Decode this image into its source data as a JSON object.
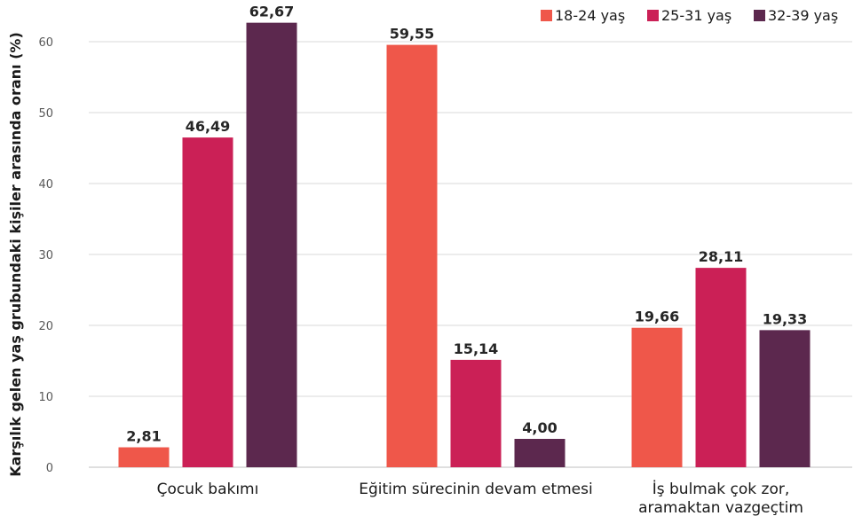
{
  "chart_data": {
    "type": "bar",
    "title": "",
    "xlabel": "",
    "ylabel": "Karşılık gelen yaş grubundaki kişiler arasında oranı (%)",
    "ylim": [
      0,
      65
    ],
    "yticks": [
      0,
      10,
      20,
      30,
      40,
      50,
      60
    ],
    "grid": true,
    "legend_position": "top-right",
    "categories": [
      [
        "Çocuk bakımı"
      ],
      [
        "Eğitim sürecinin devam etmesi"
      ],
      [
        "İş bulmak çok zor,",
        "aramaktan vazgeçtim"
      ]
    ],
    "series": [
      {
        "name": "18-24 yaş",
        "color": "#ef574a",
        "values": [
          2.81,
          59.55,
          19.66
        ],
        "labels": [
          "2,81",
          "59,55",
          "19,66"
        ]
      },
      {
        "name": "25-31 yaş",
        "color": "#cb2056",
        "values": [
          46.49,
          15.14,
          28.11
        ],
        "labels": [
          "46,49",
          "15,14",
          "28,11"
        ]
      },
      {
        "name": "32-39 yaş",
        "color": "#5c284e",
        "values": [
          62.67,
          4.0,
          19.33
        ],
        "labels": [
          "62,67",
          "4,00",
          "19,33"
        ]
      }
    ]
  }
}
